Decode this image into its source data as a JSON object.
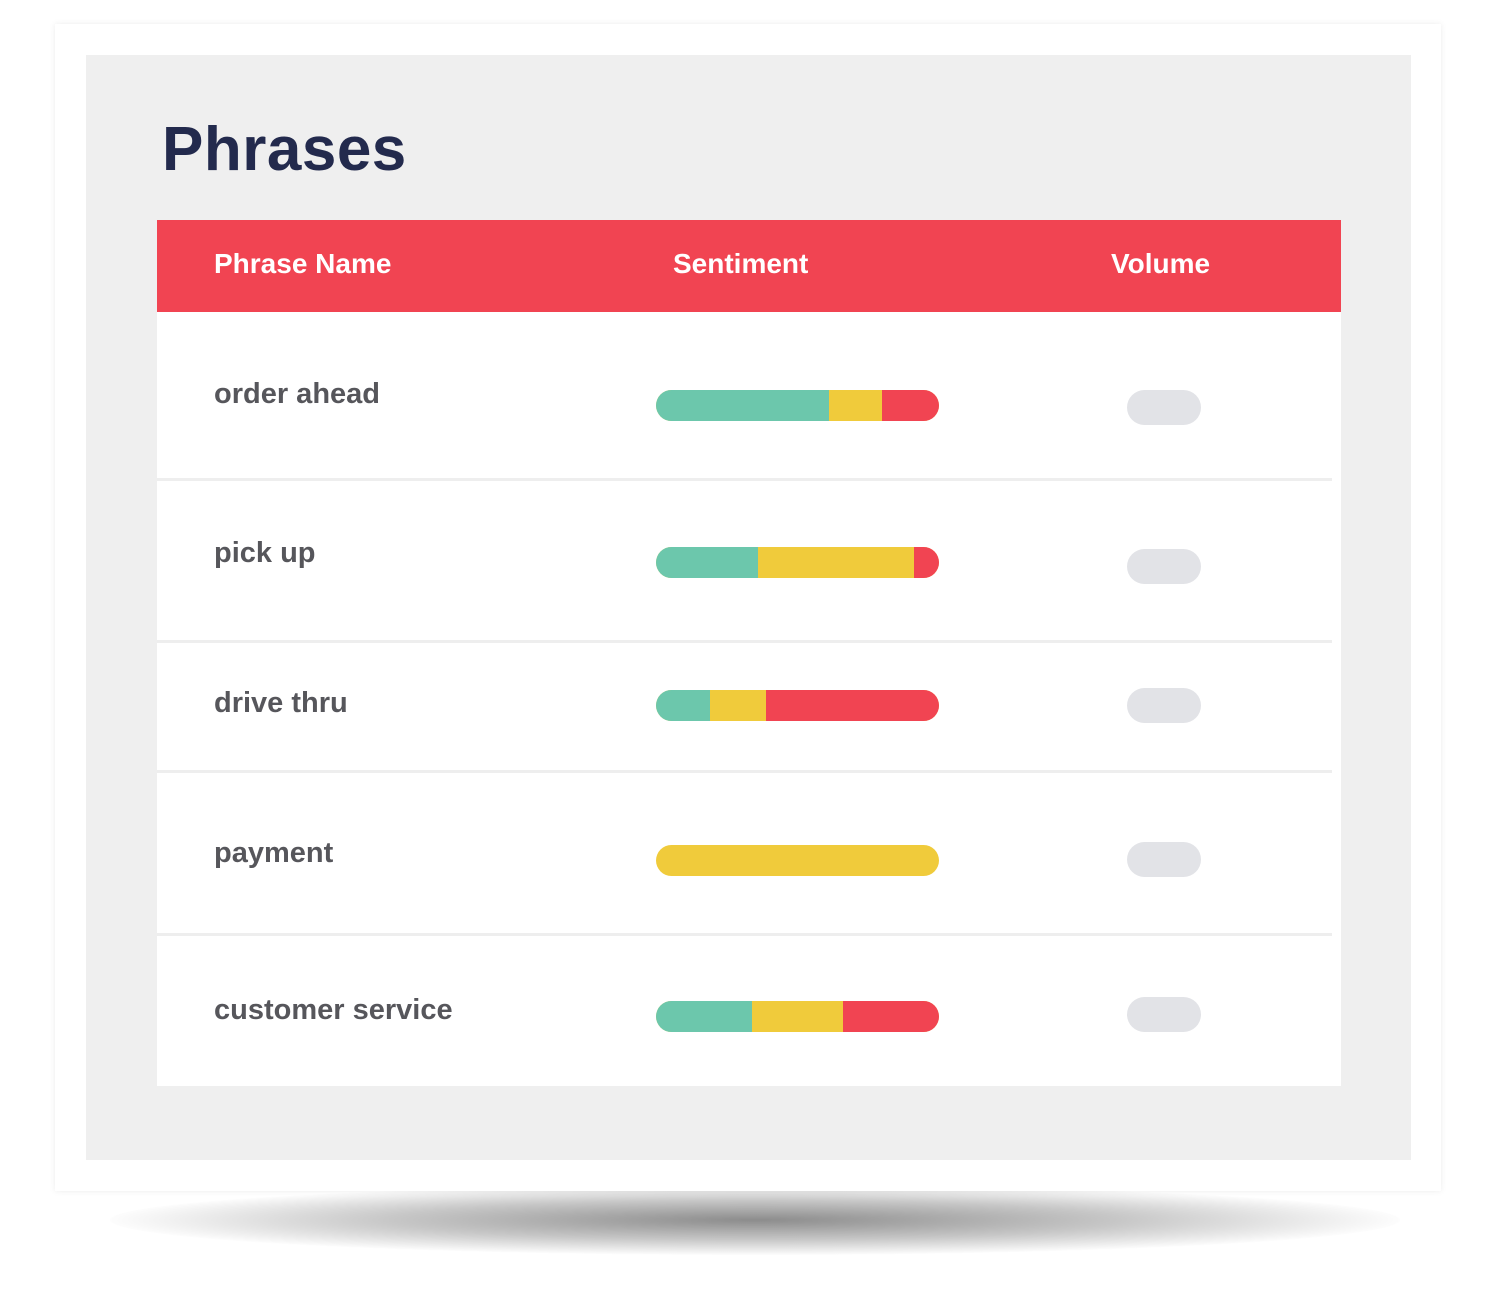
{
  "title": "Phrases",
  "columns": {
    "name": "Phrase Name",
    "sentiment": "Sentiment",
    "volume": "Volume"
  },
  "colors": {
    "header": "#f14452",
    "positive": "#6cc7ac",
    "neutral": "#f0cb3b",
    "negative": "#f14452",
    "volume_pill": "#e2e3e7",
    "title": "#232a4d"
  },
  "rows": [
    {
      "name": "order ahead",
      "sentiment": {
        "positive": 0.61,
        "neutral": 0.19,
        "negative": 0.2
      }
    },
    {
      "name": "pick up",
      "sentiment": {
        "positive": 0.36,
        "neutral": 0.55,
        "negative": 0.09
      }
    },
    {
      "name": "drive thru",
      "sentiment": {
        "positive": 0.19,
        "neutral": 0.2,
        "negative": 0.61
      }
    },
    {
      "name": "payment",
      "sentiment": {
        "positive": 0.0,
        "neutral": 1.0,
        "negative": 0.0
      }
    },
    {
      "name": "customer service",
      "sentiment": {
        "positive": 0.34,
        "neutral": 0.32,
        "negative": 0.34
      }
    }
  ]
}
